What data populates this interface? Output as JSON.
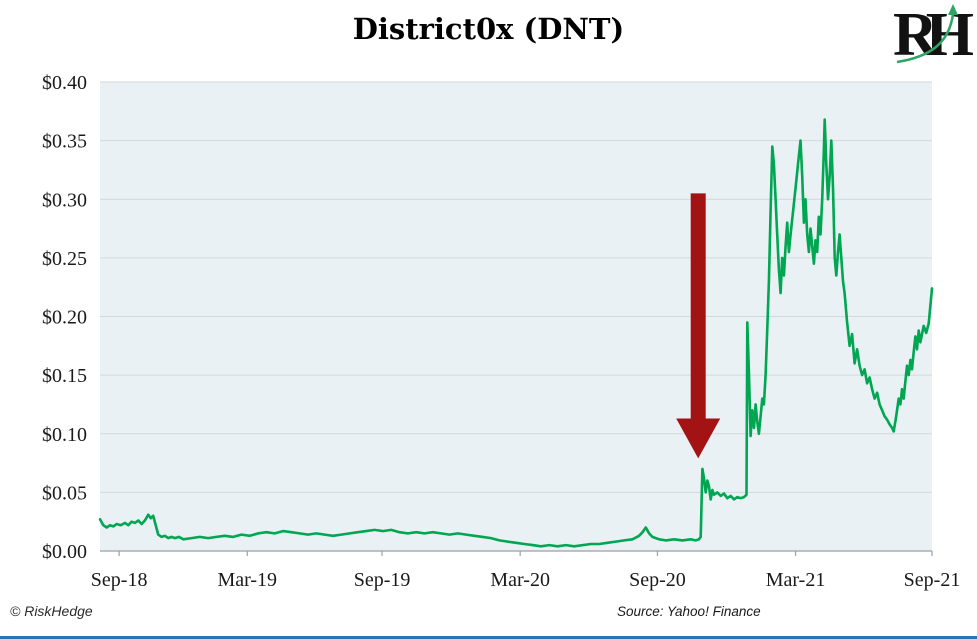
{
  "title": "District0x (DNT)",
  "logo": {
    "text": "RH",
    "arrow_color": "#2ea565",
    "text_color": "#121212"
  },
  "footer": {
    "copyright": "© RiskHedge",
    "source": "Source: Yahoo! Finance"
  },
  "colors": {
    "line_green": "#00a651",
    "arrow_red": "#a31313",
    "plot_bg": "#e9f1f4",
    "gridline": "#d3d8da",
    "axis": "#9aa0a3",
    "label_text": "#1a1a1a",
    "bottom_bar_blue": "#2e74b5"
  },
  "chart_data": {
    "type": "line",
    "title": "District0x (DNT)",
    "xlabel": "",
    "ylabel": "",
    "ylim": [
      0,
      0.4
    ],
    "grid": "horizontal",
    "legend": "none",
    "y_ticks": [
      {
        "label": "$0.40",
        "value": 0.4
      },
      {
        "label": "$0.35",
        "value": 0.35
      },
      {
        "label": "$0.30",
        "value": 0.3
      },
      {
        "label": "$0.25",
        "value": 0.25
      },
      {
        "label": "$0.20",
        "value": 0.2
      },
      {
        "label": "$0.15",
        "value": 0.15
      },
      {
        "label": "$0.10",
        "value": 0.1
      },
      {
        "label": "$0.05",
        "value": 0.05
      },
      {
        "label": "$0.00",
        "value": 0.0
      }
    ],
    "x_ticks": [
      {
        "label": "Sep-18",
        "t": 0.023
      },
      {
        "label": "Mar-19",
        "t": 0.177
      },
      {
        "label": "Sep-19",
        "t": 0.339
      },
      {
        "label": "Mar-20",
        "t": 0.505
      },
      {
        "label": "Sep-20",
        "t": 0.67
      },
      {
        "label": "Mar-21",
        "t": 0.836
      },
      {
        "label": "Sep-21",
        "t": 1.0
      }
    ],
    "series": [
      {
        "name": "District0x (DNT) price in USD",
        "color": "#00a651",
        "points": [
          [
            0.0,
            0.027
          ],
          [
            0.004,
            0.022
          ],
          [
            0.008,
            0.02
          ],
          [
            0.012,
            0.022
          ],
          [
            0.016,
            0.021
          ],
          [
            0.02,
            0.023
          ],
          [
            0.025,
            0.022
          ],
          [
            0.03,
            0.024
          ],
          [
            0.034,
            0.022
          ],
          [
            0.038,
            0.025
          ],
          [
            0.042,
            0.024
          ],
          [
            0.046,
            0.026
          ],
          [
            0.05,
            0.023
          ],
          [
            0.054,
            0.026
          ],
          [
            0.058,
            0.031
          ],
          [
            0.061,
            0.028
          ],
          [
            0.064,
            0.03
          ],
          [
            0.067,
            0.022
          ],
          [
            0.07,
            0.014
          ],
          [
            0.074,
            0.012
          ],
          [
            0.078,
            0.013
          ],
          [
            0.082,
            0.011
          ],
          [
            0.086,
            0.012
          ],
          [
            0.09,
            0.011
          ],
          [
            0.095,
            0.012
          ],
          [
            0.1,
            0.01
          ],
          [
            0.11,
            0.011
          ],
          [
            0.12,
            0.012
          ],
          [
            0.13,
            0.011
          ],
          [
            0.14,
            0.012
          ],
          [
            0.15,
            0.013
          ],
          [
            0.16,
            0.012
          ],
          [
            0.17,
            0.014
          ],
          [
            0.18,
            0.013
          ],
          [
            0.19,
            0.015
          ],
          [
            0.2,
            0.016
          ],
          [
            0.21,
            0.015
          ],
          [
            0.22,
            0.017
          ],
          [
            0.23,
            0.016
          ],
          [
            0.24,
            0.015
          ],
          [
            0.25,
            0.014
          ],
          [
            0.26,
            0.015
          ],
          [
            0.27,
            0.014
          ],
          [
            0.28,
            0.013
          ],
          [
            0.29,
            0.014
          ],
          [
            0.3,
            0.015
          ],
          [
            0.31,
            0.016
          ],
          [
            0.32,
            0.017
          ],
          [
            0.33,
            0.018
          ],
          [
            0.34,
            0.017
          ],
          [
            0.35,
            0.018
          ],
          [
            0.36,
            0.016
          ],
          [
            0.37,
            0.015
          ],
          [
            0.38,
            0.016
          ],
          [
            0.39,
            0.015
          ],
          [
            0.4,
            0.016
          ],
          [
            0.41,
            0.015
          ],
          [
            0.42,
            0.014
          ],
          [
            0.43,
            0.015
          ],
          [
            0.44,
            0.014
          ],
          [
            0.45,
            0.013
          ],
          [
            0.46,
            0.012
          ],
          [
            0.47,
            0.011
          ],
          [
            0.48,
            0.009
          ],
          [
            0.49,
            0.008
          ],
          [
            0.5,
            0.007
          ],
          [
            0.51,
            0.006
          ],
          [
            0.52,
            0.005
          ],
          [
            0.53,
            0.004
          ],
          [
            0.54,
            0.005
          ],
          [
            0.55,
            0.004
          ],
          [
            0.56,
            0.005
          ],
          [
            0.57,
            0.004
          ],
          [
            0.58,
            0.005
          ],
          [
            0.59,
            0.006
          ],
          [
            0.6,
            0.006
          ],
          [
            0.61,
            0.007
          ],
          [
            0.62,
            0.008
          ],
          [
            0.63,
            0.009
          ],
          [
            0.64,
            0.01
          ],
          [
            0.648,
            0.013
          ],
          [
            0.652,
            0.016
          ],
          [
            0.656,
            0.02
          ],
          [
            0.66,
            0.015
          ],
          [
            0.664,
            0.012
          ],
          [
            0.668,
            0.011
          ],
          [
            0.672,
            0.01
          ],
          [
            0.68,
            0.009
          ],
          [
            0.69,
            0.01
          ],
          [
            0.7,
            0.009
          ],
          [
            0.71,
            0.01
          ],
          [
            0.716,
            0.009
          ],
          [
            0.72,
            0.01
          ],
          [
            0.722,
            0.012
          ],
          [
            0.724,
            0.07
          ],
          [
            0.726,
            0.062
          ],
          [
            0.728,
            0.05
          ],
          [
            0.73,
            0.06
          ],
          [
            0.732,
            0.055
          ],
          [
            0.734,
            0.044
          ],
          [
            0.736,
            0.052
          ],
          [
            0.738,
            0.048
          ],
          [
            0.742,
            0.05
          ],
          [
            0.746,
            0.047
          ],
          [
            0.75,
            0.049
          ],
          [
            0.754,
            0.045
          ],
          [
            0.758,
            0.047
          ],
          [
            0.762,
            0.044
          ],
          [
            0.766,
            0.046
          ],
          [
            0.77,
            0.045
          ],
          [
            0.774,
            0.046
          ],
          [
            0.777,
            0.048
          ],
          [
            0.778,
            0.195
          ],
          [
            0.78,
            0.15
          ],
          [
            0.782,
            0.098
          ],
          [
            0.784,
            0.12
          ],
          [
            0.786,
            0.105
          ],
          [
            0.788,
            0.125
          ],
          [
            0.79,
            0.11
          ],
          [
            0.792,
            0.1
          ],
          [
            0.794,
            0.115
          ],
          [
            0.796,
            0.13
          ],
          [
            0.798,
            0.125
          ],
          [
            0.8,
            0.15
          ],
          [
            0.802,
            0.19
          ],
          [
            0.804,
            0.23
          ],
          [
            0.806,
            0.29
          ],
          [
            0.808,
            0.345
          ],
          [
            0.81,
            0.33
          ],
          [
            0.812,
            0.3
          ],
          [
            0.814,
            0.27
          ],
          [
            0.816,
            0.24
          ],
          [
            0.818,
            0.22
          ],
          [
            0.82,
            0.25
          ],
          [
            0.822,
            0.235
          ],
          [
            0.824,
            0.26
          ],
          [
            0.826,
            0.28
          ],
          [
            0.828,
            0.255
          ],
          [
            0.83,
            0.27
          ],
          [
            0.833,
            0.29
          ],
          [
            0.836,
            0.31
          ],
          [
            0.839,
            0.33
          ],
          [
            0.842,
            0.35
          ],
          [
            0.844,
            0.32
          ],
          [
            0.846,
            0.28
          ],
          [
            0.848,
            0.3
          ],
          [
            0.85,
            0.27
          ],
          [
            0.852,
            0.255
          ],
          [
            0.854,
            0.275
          ],
          [
            0.856,
            0.26
          ],
          [
            0.858,
            0.245
          ],
          [
            0.86,
            0.265
          ],
          [
            0.862,
            0.255
          ],
          [
            0.864,
            0.285
          ],
          [
            0.866,
            0.27
          ],
          [
            0.868,
            0.3
          ],
          [
            0.87,
            0.34
          ],
          [
            0.871,
            0.368
          ],
          [
            0.873,
            0.33
          ],
          [
            0.875,
            0.3
          ],
          [
            0.877,
            0.32
          ],
          [
            0.879,
            0.35
          ],
          [
            0.881,
            0.31
          ],
          [
            0.883,
            0.25
          ],
          [
            0.885,
            0.235
          ],
          [
            0.887,
            0.255
          ],
          [
            0.889,
            0.27
          ],
          [
            0.891,
            0.25
          ],
          [
            0.893,
            0.23
          ],
          [
            0.895,
            0.22
          ],
          [
            0.898,
            0.195
          ],
          [
            0.901,
            0.175
          ],
          [
            0.904,
            0.185
          ],
          [
            0.907,
            0.16
          ],
          [
            0.91,
            0.172
          ],
          [
            0.913,
            0.158
          ],
          [
            0.916,
            0.15
          ],
          [
            0.919,
            0.155
          ],
          [
            0.922,
            0.143
          ],
          [
            0.925,
            0.148
          ],
          [
            0.928,
            0.138
          ],
          [
            0.931,
            0.13
          ],
          [
            0.934,
            0.135
          ],
          [
            0.937,
            0.125
          ],
          [
            0.94,
            0.12
          ],
          [
            0.943,
            0.115
          ],
          [
            0.946,
            0.112
          ],
          [
            0.949,
            0.108
          ],
          [
            0.952,
            0.105
          ],
          [
            0.954,
            0.102
          ],
          [
            0.957,
            0.115
          ],
          [
            0.96,
            0.13
          ],
          [
            0.962,
            0.125
          ],
          [
            0.964,
            0.138
          ],
          [
            0.966,
            0.13
          ],
          [
            0.968,
            0.145
          ],
          [
            0.97,
            0.158
          ],
          [
            0.972,
            0.15
          ],
          [
            0.974,
            0.163
          ],
          [
            0.976,
            0.155
          ],
          [
            0.978,
            0.17
          ],
          [
            0.98,
            0.183
          ],
          [
            0.982,
            0.172
          ],
          [
            0.984,
            0.188
          ],
          [
            0.986,
            0.178
          ],
          [
            0.988,
            0.185
          ],
          [
            0.99,
            0.192
          ],
          [
            0.993,
            0.186
          ],
          [
            0.996,
            0.194
          ],
          [
            1.0,
            0.224
          ]
        ]
      }
    ],
    "annotations": [
      {
        "type": "down-arrow",
        "description": "Red arrow pointing down at the Nov-2020 price breakout",
        "color": "#a31313",
        "t": 0.719,
        "top_value": 0.305,
        "head_top_value": 0.113,
        "tip_value": 0.079
      }
    ]
  }
}
